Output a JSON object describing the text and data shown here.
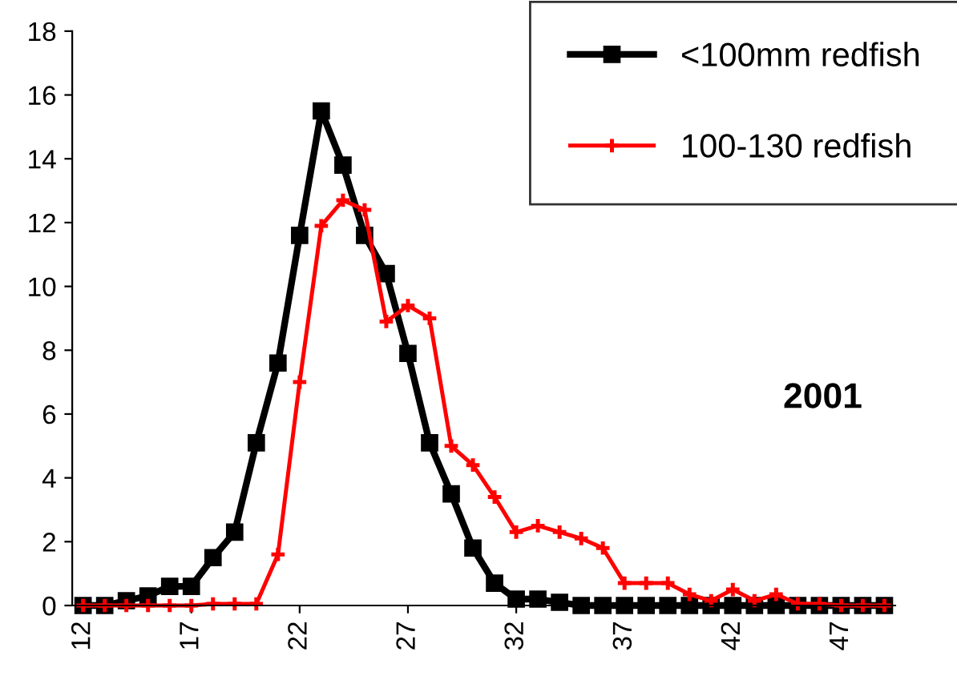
{
  "chart_data": {
    "type": "line",
    "categories": [
      "12",
      null,
      null,
      null,
      null,
      "17",
      null,
      null,
      null,
      null,
      "22",
      null,
      null,
      null,
      null,
      "27",
      null,
      null,
      null,
      null,
      "32",
      null,
      null,
      null,
      null,
      "37",
      null,
      null,
      null,
      null,
      "42",
      null,
      null,
      null,
      null,
      "47",
      null,
      null
    ],
    "series": [
      {
        "name": "<100mm redfish",
        "color": "#000000",
        "marker": "square",
        "values": [
          0,
          0,
          0.15,
          0.3,
          0.6,
          0.6,
          1.5,
          2.3,
          5.1,
          7.6,
          11.6,
          15.5,
          13.8,
          11.6,
          10.4,
          7.9,
          5.1,
          3.5,
          1.8,
          0.7,
          0.2,
          0.2,
          0.1,
          0,
          0,
          0,
          0,
          0,
          0,
          0,
          0,
          0,
          0,
          0,
          0,
          0,
          0,
          0
        ]
      },
      {
        "name": "100-130 redfish",
        "color": "#ff0000",
        "marker": "cross",
        "values": [
          0,
          0,
          0,
          0,
          0,
          0,
          0.05,
          0.05,
          0.05,
          1.6,
          7.0,
          11.9,
          12.7,
          12.4,
          8.9,
          9.4,
          9.0,
          5.0,
          4.4,
          3.4,
          2.3,
          2.5,
          2.3,
          2.1,
          1.8,
          0.7,
          0.7,
          0.7,
          0.35,
          0.15,
          0.5,
          0.15,
          0.35,
          0.05,
          0.05,
          0,
          0,
          0
        ]
      }
    ],
    "ylim": [
      0,
      18
    ],
    "yticks": [
      0,
      2,
      4,
      6,
      8,
      10,
      12,
      14,
      16,
      18
    ],
    "annotations": [
      "2001"
    ],
    "grid": false,
    "legend": "top right",
    "line_style": "solid"
  }
}
